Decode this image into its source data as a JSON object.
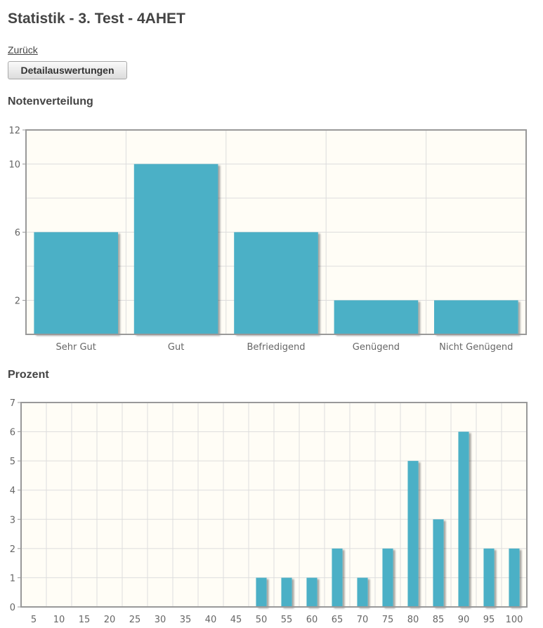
{
  "header": {
    "title": "Statistik - 3. Test - 4AHET",
    "back_link": "Zurück",
    "detail_button": "Detailauswertungen"
  },
  "sections": {
    "grades_title": "Notenverteilung",
    "percent_title": "Prozent"
  },
  "colors": {
    "bar": "#4bb0c6",
    "plot_background": "#fffdf6",
    "grid": "#dddddd",
    "axis": "#999999"
  },
  "chart_data": [
    {
      "type": "bar",
      "categories": [
        "Sehr Gut",
        "Gut",
        "Befriedigend",
        "Genügend",
        "Nicht Genügend"
      ],
      "values": [
        6,
        10,
        6,
        2,
        2
      ],
      "ylim": [
        0,
        12
      ],
      "y_ticks": [
        2,
        6,
        10,
        12
      ],
      "grid": true
    },
    {
      "type": "bar",
      "categories": [
        "5",
        "10",
        "15",
        "20",
        "25",
        "30",
        "35",
        "40",
        "45",
        "50",
        "55",
        "60",
        "65",
        "70",
        "75",
        "80",
        "85",
        "90",
        "95",
        "100"
      ],
      "values": [
        0,
        0,
        0,
        0,
        0,
        0,
        0,
        0,
        0,
        1,
        1,
        1,
        2,
        1,
        2,
        5,
        3,
        6,
        2,
        2
      ],
      "ylim": [
        0,
        7
      ],
      "y_ticks": [
        0,
        1,
        2,
        3,
        4,
        5,
        6,
        7
      ],
      "grid": true
    }
  ]
}
